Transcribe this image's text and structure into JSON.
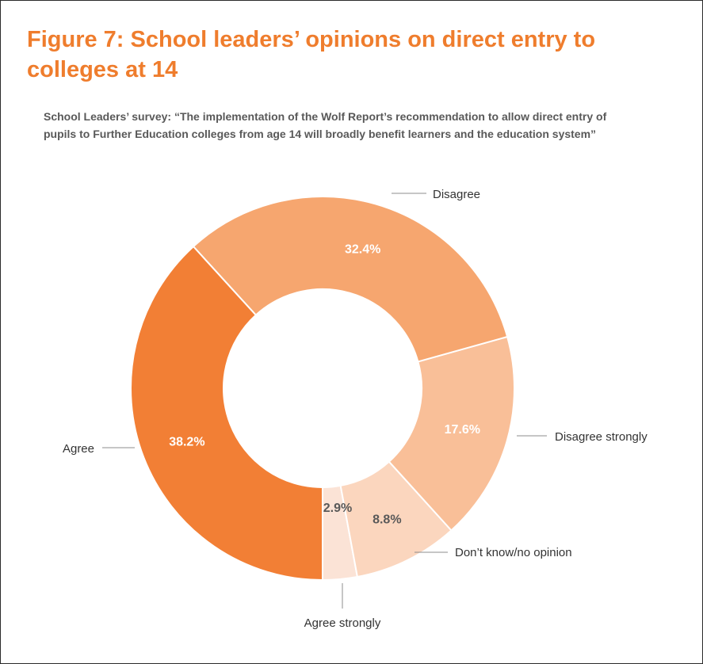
{
  "figure": {
    "title": "Figure 7: School leaders’ opinions on direct entry to colleges at 14",
    "subtitle": "School Leaders’ survey: “The implementation of the Wolf Report’s recommendation to allow direct entry of pupils to Further Education colleges from age 14 will broadly benefit learners and the education system”"
  },
  "chart_data": {
    "type": "pie",
    "variant": "donut",
    "title": "Figure 7: School leaders’ opinions on direct entry to colleges at 14",
    "subtitle": "School Leaders’ survey: “The implementation of the Wolf Report’s recommendation to allow direct entry of pupils to Further Education colleges from age 14 will broadly benefit learners and the education system”",
    "slices": [
      {
        "label": "Agree strongly",
        "value": 2.9,
        "display": "2.9%",
        "color": "#fbe3d6",
        "text_color": "#595959"
      },
      {
        "label": "Don’t know/no opinion",
        "value": 8.8,
        "display": "8.8%",
        "color": "#fbd6be",
        "text_color": "#595959"
      },
      {
        "label": "Disagree strongly",
        "value": 17.6,
        "display": "17.6%",
        "color": "#f9bf98",
        "text_color": "#ffffff"
      },
      {
        "label": "Disagree",
        "value": 32.4,
        "display": "32.4%",
        "color": "#f6a66f",
        "text_color": "#ffffff"
      },
      {
        "label": "Agree",
        "value": 38.2,
        "display": "38.2%",
        "color": "#f27f35",
        "text_color": "#ffffff"
      }
    ],
    "start": "bottom",
    "direction": "counterclockwise",
    "legend": "callout labels"
  }
}
